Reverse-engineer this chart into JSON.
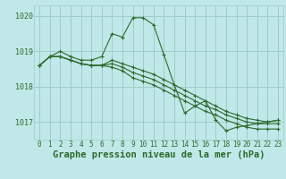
{
  "x": [
    0,
    1,
    2,
    3,
    4,
    5,
    6,
    7,
    8,
    9,
    10,
    11,
    12,
    13,
    14,
    15,
    16,
    17,
    18,
    19,
    20,
    21,
    22,
    23
  ],
  "series": [
    [
      1018.6,
      1018.85,
      1019.0,
      1018.85,
      1018.75,
      1018.75,
      1018.85,
      1019.5,
      1019.4,
      1019.95,
      1019.95,
      1019.75,
      1018.9,
      1018.05,
      1017.25,
      1017.45,
      1017.6,
      1017.05,
      1016.75,
      1016.85,
      1016.9,
      1016.95,
      1017.0,
      1017.05
    ],
    [
      1018.6,
      1018.85,
      1018.85,
      1018.75,
      1018.65,
      1018.6,
      1018.6,
      1018.75,
      1018.65,
      1018.55,
      1018.45,
      1018.35,
      1018.2,
      1018.05,
      1017.9,
      1017.75,
      1017.6,
      1017.45,
      1017.3,
      1017.2,
      1017.1,
      1017.05,
      1017.0,
      1017.05
    ],
    [
      1018.6,
      1018.85,
      1018.85,
      1018.75,
      1018.65,
      1018.6,
      1018.6,
      1018.65,
      1018.55,
      1018.4,
      1018.3,
      1018.2,
      1018.05,
      1017.9,
      1017.75,
      1017.6,
      1017.45,
      1017.35,
      1017.2,
      1017.1,
      1017.0,
      1016.95,
      1016.95,
      1016.95
    ],
    [
      1018.6,
      1018.85,
      1018.85,
      1018.75,
      1018.65,
      1018.6,
      1018.6,
      1018.55,
      1018.45,
      1018.25,
      1018.15,
      1018.05,
      1017.9,
      1017.75,
      1017.6,
      1017.45,
      1017.3,
      1017.2,
      1017.05,
      1016.95,
      1016.85,
      1016.8,
      1016.8,
      1016.8
    ]
  ],
  "line_color": "#2d6a2d",
  "bg_color": "#c0e8e8",
  "grid_color": "#a0cccc",
  "ylim": [
    1016.5,
    1020.3
  ],
  "yticks": [
    1017,
    1018,
    1019,
    1020
  ],
  "xlabel": "Graphe pression niveau de la mer (hPa)",
  "marker": "+",
  "marker_size": 3.5,
  "linewidth": 0.8,
  "xlabel_fontsize": 7.5,
  "tick_fontsize": 5.5
}
